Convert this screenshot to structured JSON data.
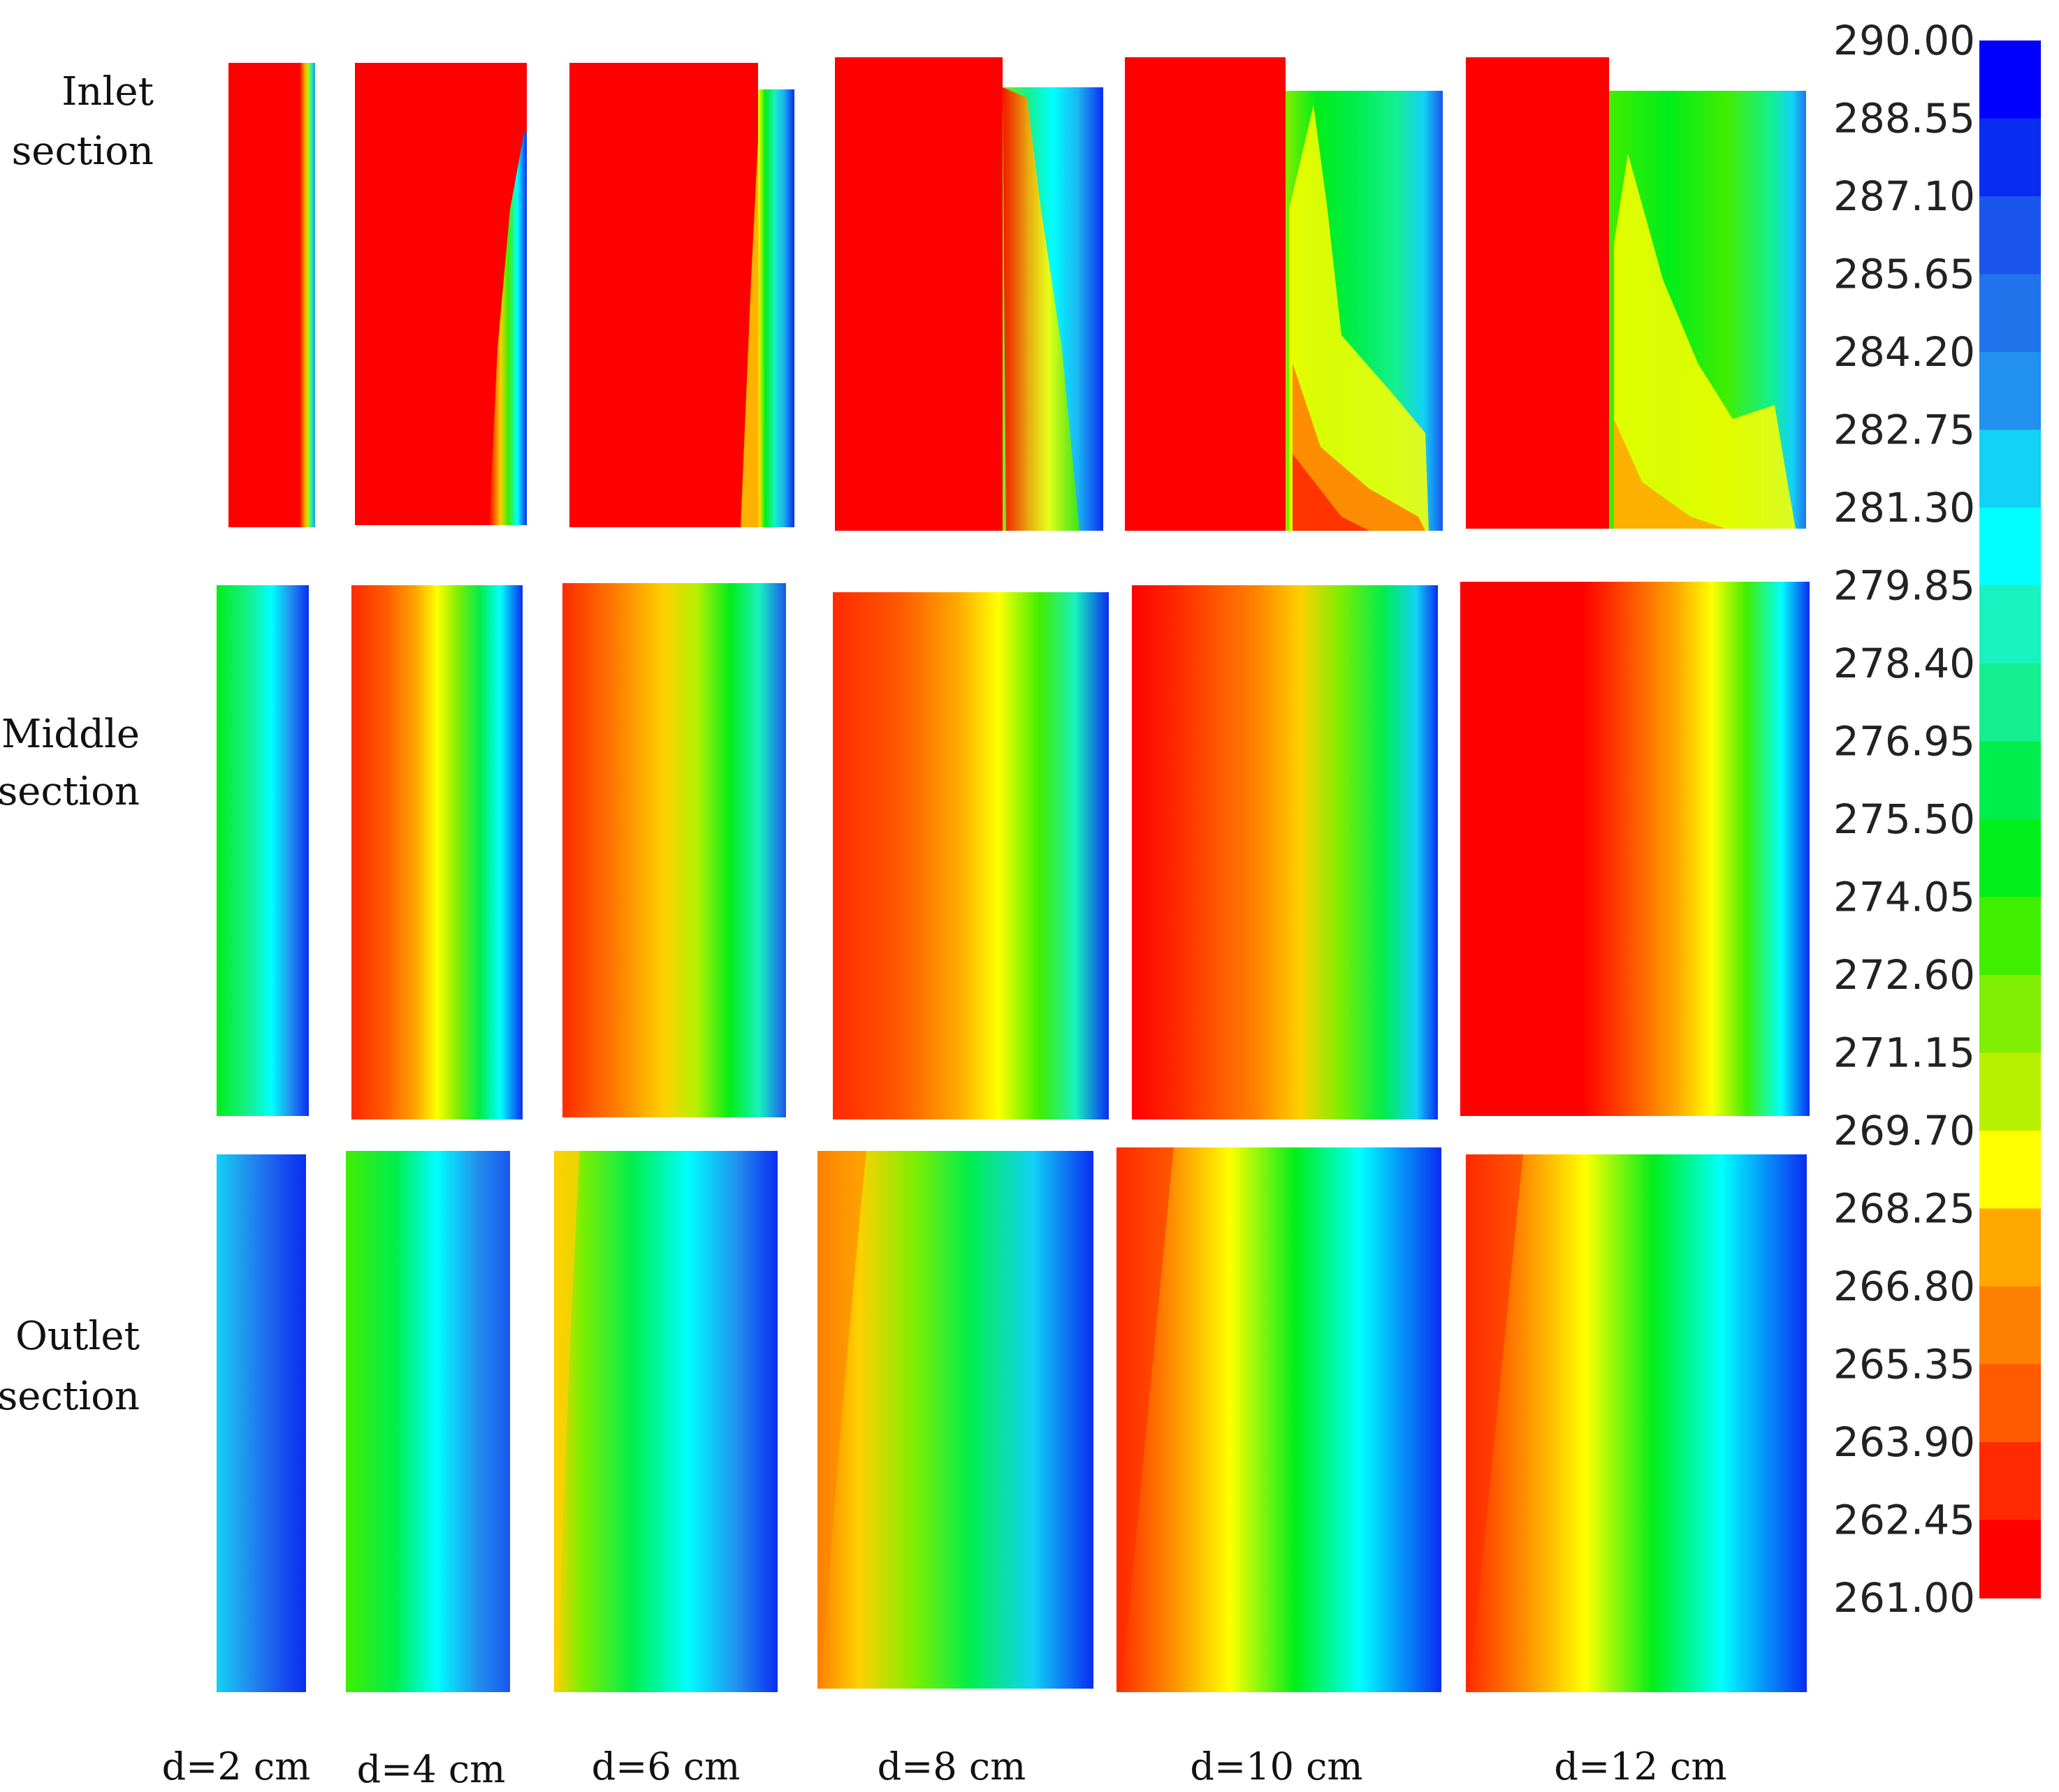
{
  "colors": [
    "#0000ff",
    "#0a2cf2",
    "#1a55ee",
    "#2173ec",
    "#2190ee",
    "#1cb4f2",
    "#12d2f6",
    "#00ffff",
    "#17f2c0",
    "#14f08f",
    "#00ee4c",
    "#00ee1a",
    "#40ee00",
    "#7fee00",
    "#b7f000",
    "#ffff00",
    "#ffd000",
    "#ffa800",
    "#ff8000",
    "#ff5a00",
    "#ff2a00",
    "#ff0000"
  ],
  "colorbar": {
    "ticks": [
      "290.00",
      "288.55",
      "287.10",
      "285.65",
      "284.20",
      "282.75",
      "281.30",
      "279.85",
      "278.40",
      "276.95",
      "275.50",
      "274.05",
      "272.60",
      "271.15",
      "269.70",
      "268.25",
      "266.80",
      "265.35",
      "263.90",
      "262.45",
      "261.00"
    ]
  },
  "rows": [
    {
      "label_line1": "Inlet",
      "label_line2": "section"
    },
    {
      "label_line1": "Middle",
      "label_line2": "section"
    },
    {
      "label_line1": "Outlet",
      "label_line2": "section"
    }
  ],
  "columns": [
    {
      "label": "d=2 cm"
    },
    {
      "label": "d=4 cm"
    },
    {
      "label": "d=6 cm"
    },
    {
      "label": "d=8 cm"
    },
    {
      "label": "d=10 cm"
    },
    {
      "label": "d=12 cm"
    }
  ]
}
